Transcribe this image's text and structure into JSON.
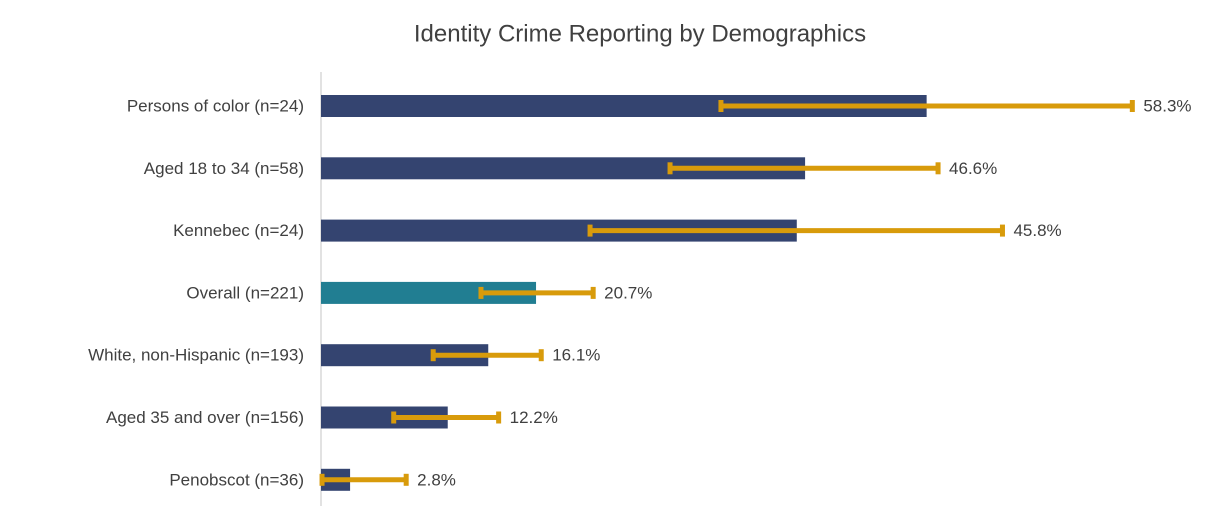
{
  "chart_data": {
    "type": "hbar",
    "title": "Identity Crime Reporting by Demographics",
    "categories": [
      "Persons of color (n=24)",
      "Aged 18 to 34 (n=58)",
      "Kennebec (n=24)",
      "Overall (n=221)",
      "White, non-Hispanic (n=193)",
      "Aged 35 and over (n=156)",
      "Penobscot (n=36)"
    ],
    "values": [
      58.3,
      46.6,
      45.8,
      20.7,
      16.1,
      12.2,
      2.8
    ],
    "value_labels": [
      "58.3%",
      "46.6%",
      "45.8%",
      "20.7%",
      "16.1%",
      "12.2%",
      "2.8%"
    ],
    "ci_lower": [
      38.5,
      33.6,
      25.9,
      15.4,
      10.8,
      7.0,
      0.1
    ],
    "ci_upper": [
      78.1,
      59.4,
      65.6,
      26.2,
      21.2,
      17.1,
      8.2
    ],
    "colors": [
      "#344470",
      "#344470",
      "#344470",
      "#217e92",
      "#344470",
      "#344470",
      "#344470"
    ],
    "error_color": "#d89b0b",
    "xlim": [
      0,
      85
    ]
  }
}
